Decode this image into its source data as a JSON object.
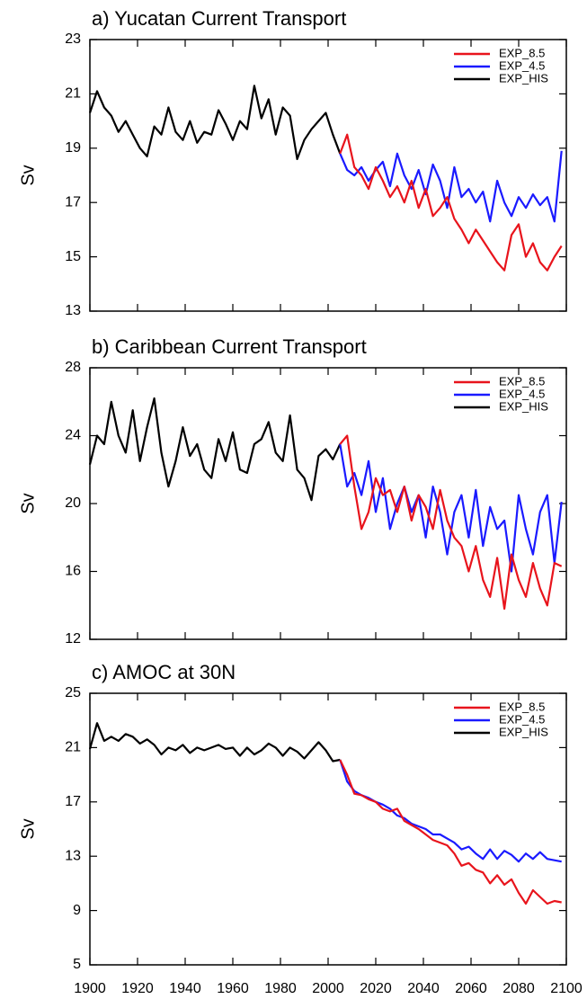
{
  "chart_data": [
    {
      "type": "line",
      "title": "a) Yucatan Current Transport",
      "y_label": "Sv",
      "xlim": [
        1900,
        2100
      ],
      "xticks": [
        1900,
        1920,
        1940,
        1960,
        1980,
        2000,
        2020,
        2040,
        2060,
        2080,
        2100
      ],
      "ylim": [
        13,
        23
      ],
      "yticks": [
        13,
        15,
        17,
        19,
        21,
        23
      ],
      "legend": "upper right",
      "series": [
        {
          "name": "EXP_8.5",
          "color": "#e8141c",
          "x": [
            2005,
            2008,
            2011,
            2014,
            2017,
            2020,
            2023,
            2026,
            2029,
            2032,
            2035,
            2038,
            2041,
            2044,
            2047,
            2050,
            2053,
            2056,
            2059,
            2062,
            2065,
            2068,
            2071,
            2074,
            2077,
            2080,
            2083,
            2086,
            2089,
            2092,
            2095,
            2098
          ],
          "values": [
            18.8,
            19.5,
            18.3,
            18.0,
            17.5,
            18.3,
            17.8,
            17.2,
            17.6,
            17.0,
            17.8,
            16.8,
            17.5,
            16.5,
            16.8,
            17.2,
            16.4,
            16.0,
            15.5,
            16.0,
            15.6,
            15.2,
            14.8,
            14.5,
            15.8,
            16.2,
            15.0,
            15.5,
            14.8,
            14.5,
            15.0,
            15.4
          ]
        },
        {
          "name": "EXP_4.5",
          "color": "#1a1aff",
          "x": [
            2005,
            2008,
            2011,
            2014,
            2017,
            2020,
            2023,
            2026,
            2029,
            2032,
            2035,
            2038,
            2041,
            2044,
            2047,
            2050,
            2053,
            2056,
            2059,
            2062,
            2065,
            2068,
            2071,
            2074,
            2077,
            2080,
            2083,
            2086,
            2089,
            2092,
            2095,
            2098
          ],
          "values": [
            18.8,
            18.2,
            18.0,
            18.3,
            17.8,
            18.2,
            18.5,
            17.6,
            18.8,
            18.0,
            17.5,
            18.2,
            17.3,
            18.4,
            17.8,
            16.8,
            18.3,
            17.2,
            17.5,
            17.0,
            17.4,
            16.3,
            17.8,
            17.0,
            16.5,
            17.2,
            16.8,
            17.3,
            16.9,
            17.2,
            16.3,
            18.9
          ]
        },
        {
          "name": "EXP_HIS",
          "color": "#000000",
          "x": [
            1900,
            1903,
            1906,
            1909,
            1912,
            1915,
            1918,
            1921,
            1924,
            1927,
            1930,
            1933,
            1936,
            1939,
            1942,
            1945,
            1948,
            1951,
            1954,
            1957,
            1960,
            1963,
            1966,
            1969,
            1972,
            1975,
            1978,
            1981,
            1984,
            1987,
            1990,
            1993,
            1996,
            1999,
            2002,
            2005
          ],
          "values": [
            20.3,
            21.1,
            20.5,
            20.2,
            19.6,
            20.0,
            19.5,
            19.0,
            18.7,
            19.8,
            19.5,
            20.5,
            19.6,
            19.3,
            20.0,
            19.2,
            19.6,
            19.5,
            20.4,
            19.9,
            19.3,
            20.0,
            19.7,
            21.3,
            20.1,
            20.8,
            19.5,
            20.5,
            20.2,
            18.6,
            19.3,
            19.7,
            20.0,
            20.3,
            19.5,
            18.8
          ]
        }
      ]
    },
    {
      "type": "line",
      "title": "b) Caribbean Current Transport",
      "y_label": "Sv",
      "xlim": [
        1900,
        2100
      ],
      "xticks": [
        1900,
        1920,
        1940,
        1960,
        1980,
        2000,
        2020,
        2040,
        2060,
        2080,
        2100
      ],
      "ylim": [
        12,
        28
      ],
      "yticks": [
        12,
        16,
        20,
        24,
        28
      ],
      "legend": "upper right",
      "series": [
        {
          "name": "EXP_8.5",
          "color": "#e8141c",
          "x": [
            2005,
            2008,
            2011,
            2014,
            2017,
            2020,
            2023,
            2026,
            2029,
            2032,
            2035,
            2038,
            2041,
            2044,
            2047,
            2050,
            2053,
            2056,
            2059,
            2062,
            2065,
            2068,
            2071,
            2074,
            2077,
            2080,
            2083,
            2086,
            2089,
            2092,
            2095,
            2098
          ],
          "values": [
            23.5,
            24.0,
            21.0,
            18.5,
            19.5,
            21.5,
            20.5,
            20.8,
            19.5,
            21.0,
            19.0,
            20.5,
            19.8,
            18.5,
            20.8,
            19.0,
            18.0,
            17.5,
            16.0,
            17.5,
            15.5,
            14.5,
            16.8,
            13.8,
            17.0,
            15.5,
            14.5,
            16.5,
            15.0,
            14.0,
            16.5,
            16.3
          ]
        },
        {
          "name": "EXP_4.5",
          "color": "#1a1aff",
          "x": [
            2005,
            2008,
            2011,
            2014,
            2017,
            2020,
            2023,
            2026,
            2029,
            2032,
            2035,
            2038,
            2041,
            2044,
            2047,
            2050,
            2053,
            2056,
            2059,
            2062,
            2065,
            2068,
            2071,
            2074,
            2077,
            2080,
            2083,
            2086,
            2089,
            2092,
            2095,
            2098
          ],
          "values": [
            23.5,
            21.0,
            21.8,
            20.5,
            22.5,
            19.5,
            21.5,
            18.5,
            20.0,
            21.0,
            19.5,
            20.5,
            18.0,
            21.0,
            19.5,
            17.0,
            19.5,
            20.5,
            18.0,
            20.8,
            17.5,
            19.8,
            18.5,
            19.0,
            16.0,
            20.5,
            18.5,
            17.0,
            19.5,
            20.5,
            16.5,
            20.1
          ]
        },
        {
          "name": "EXP_HIS",
          "color": "#000000",
          "x": [
            1900,
            1903,
            1906,
            1909,
            1912,
            1915,
            1918,
            1921,
            1924,
            1927,
            1930,
            1933,
            1936,
            1939,
            1942,
            1945,
            1948,
            1951,
            1954,
            1957,
            1960,
            1963,
            1966,
            1969,
            1972,
            1975,
            1978,
            1981,
            1984,
            1987,
            1990,
            1993,
            1996,
            1999,
            2002,
            2005
          ],
          "values": [
            22.3,
            24.0,
            23.5,
            26.0,
            24.0,
            23.0,
            25.5,
            22.5,
            24.5,
            26.2,
            23.0,
            21.0,
            22.5,
            24.5,
            22.8,
            23.5,
            22.0,
            21.5,
            23.8,
            22.5,
            24.2,
            22.0,
            21.8,
            23.5,
            23.8,
            24.8,
            23.0,
            22.5,
            25.2,
            22.0,
            21.5,
            20.2,
            22.8,
            23.2,
            22.6,
            23.5
          ]
        }
      ]
    },
    {
      "type": "line",
      "title": "c) AMOC at 30N",
      "y_label": "Sv",
      "xlim": [
        1900,
        2100
      ],
      "xticks": [
        1900,
        1920,
        1940,
        1960,
        1980,
        2000,
        2020,
        2040,
        2060,
        2080,
        2100
      ],
      "ylim": [
        5,
        25
      ],
      "yticks": [
        5,
        9,
        13,
        17,
        21,
        25
      ],
      "legend": "upper right",
      "series": [
        {
          "name": "EXP_8.5",
          "color": "#e8141c",
          "x": [
            2005,
            2008,
            2011,
            2014,
            2017,
            2020,
            2023,
            2026,
            2029,
            2032,
            2035,
            2038,
            2041,
            2044,
            2047,
            2050,
            2053,
            2056,
            2059,
            2062,
            2065,
            2068,
            2071,
            2074,
            2077,
            2080,
            2083,
            2086,
            2089,
            2092,
            2095,
            2098
          ],
          "values": [
            20.1,
            19.0,
            17.6,
            17.5,
            17.2,
            17.0,
            16.5,
            16.3,
            16.5,
            15.6,
            15.3,
            15.0,
            14.6,
            14.2,
            14.0,
            13.8,
            13.2,
            12.3,
            12.5,
            12.0,
            11.8,
            11.0,
            11.6,
            10.9,
            11.3,
            10.3,
            9.5,
            10.5,
            10.0,
            9.5,
            9.7,
            9.6
          ]
        },
        {
          "name": "EXP_4.5",
          "color": "#1a1aff",
          "x": [
            2005,
            2008,
            2011,
            2014,
            2017,
            2020,
            2023,
            2026,
            2029,
            2032,
            2035,
            2038,
            2041,
            2044,
            2047,
            2050,
            2053,
            2056,
            2059,
            2062,
            2065,
            2068,
            2071,
            2074,
            2077,
            2080,
            2083,
            2086,
            2089,
            2092,
            2095,
            2098
          ],
          "values": [
            20.1,
            18.5,
            17.8,
            17.5,
            17.3,
            17.0,
            16.8,
            16.5,
            16.0,
            15.8,
            15.4,
            15.2,
            15.0,
            14.6,
            14.6,
            14.3,
            14.0,
            13.5,
            13.7,
            13.2,
            12.8,
            13.5,
            12.8,
            13.4,
            13.1,
            12.6,
            13.2,
            12.8,
            13.3,
            12.8,
            12.7,
            12.6
          ]
        },
        {
          "name": "EXP_HIS",
          "color": "#000000",
          "x": [
            1900,
            1903,
            1906,
            1909,
            1912,
            1915,
            1918,
            1921,
            1924,
            1927,
            1930,
            1933,
            1936,
            1939,
            1942,
            1945,
            1948,
            1951,
            1954,
            1957,
            1960,
            1963,
            1966,
            1969,
            1972,
            1975,
            1978,
            1981,
            1984,
            1987,
            1990,
            1993,
            1996,
            1999,
            2002,
            2005
          ],
          "values": [
            20.9,
            22.8,
            21.5,
            21.8,
            21.5,
            22.0,
            21.8,
            21.3,
            21.6,
            21.2,
            20.5,
            21.0,
            20.8,
            21.2,
            20.6,
            21.0,
            20.8,
            21.0,
            21.2,
            20.9,
            21.0,
            20.4,
            21.0,
            20.5,
            20.8,
            21.3,
            21.0,
            20.4,
            21.0,
            20.7,
            20.2,
            20.8,
            21.4,
            20.8,
            20.0,
            20.1
          ]
        }
      ]
    }
  ]
}
